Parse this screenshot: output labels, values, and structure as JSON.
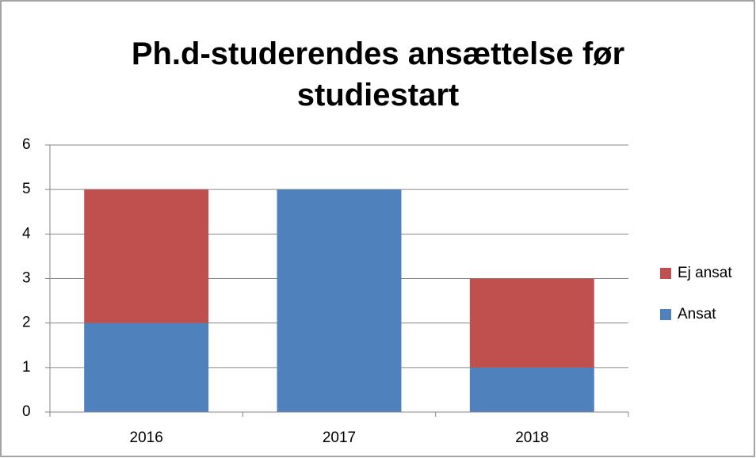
{
  "chart_data": {
    "type": "stacked_bar",
    "title": "Ph.d-studerendes ansættelse før studiestart",
    "categories": [
      "2016",
      "2017",
      "2018"
    ],
    "series": [
      {
        "name": "Ansat",
        "color": "#4f81bd",
        "values": [
          2,
          5,
          1
        ]
      },
      {
        "name": "Ej ansat",
        "color": "#c0504d",
        "values": [
          3,
          0,
          2
        ]
      }
    ],
    "ylim": [
      0,
      6
    ],
    "yticks": [
      0,
      1,
      2,
      3,
      4,
      5,
      6
    ],
    "grid": true,
    "legend": "right"
  }
}
